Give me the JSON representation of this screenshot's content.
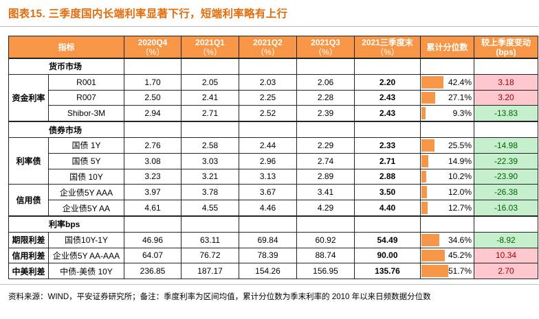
{
  "title": "图表15.  三季度国内长端利率显著下行，短端利率略有上行",
  "header": {
    "indicator": "指标",
    "cols": [
      {
        "label": "2020Q4",
        "unit": "（%）"
      },
      {
        "label": "2021Q1",
        "unit": "（%）"
      },
      {
        "label": "2021Q2",
        "unit": "（%）"
      },
      {
        "label": "2021Q3",
        "unit": "（%）"
      },
      {
        "label": "2021三季度末",
        "unit": "（%）"
      }
    ],
    "percentile": "累计分位数",
    "change": "较上季度变动",
    "change_unit": "(bps)"
  },
  "rows": [
    {
      "type": "section",
      "label": "货币市场"
    },
    {
      "type": "data",
      "group": "资金利率",
      "span": 3,
      "label": "R001",
      "values": [
        "1.70",
        "2.05",
        "2.03",
        "2.06"
      ],
      "end": "2.20",
      "pct": "42.4%",
      "pct_value": 42.4,
      "change": "3.18",
      "dir": "up"
    },
    {
      "type": "data",
      "label": "R007",
      "values": [
        "2.50",
        "2.41",
        "2.25",
        "2.28"
      ],
      "end": "2.43",
      "pct": "27.1%",
      "pct_value": 27.1,
      "change": "3.20",
      "dir": "up"
    },
    {
      "type": "data",
      "label": "Shibor-3M",
      "values": [
        "2.94",
        "2.71",
        "2.52",
        "2.39"
      ],
      "end": "2.43",
      "pct": "9.3%",
      "pct_value": 9.3,
      "change": "-13.83",
      "dir": "down"
    },
    {
      "type": "section",
      "label": "债券市场"
    },
    {
      "type": "data",
      "group": "利率债",
      "span": 3,
      "label": "国债 1Y",
      "values": [
        "2.76",
        "2.58",
        "2.44",
        "2.29"
      ],
      "end": "2.33",
      "pct": "25.5%",
      "pct_value": 25.5,
      "change": "-14.98",
      "dir": "down"
    },
    {
      "type": "data",
      "label": "国债 5Y",
      "values": [
        "3.08",
        "3.03",
        "2.96",
        "2.74"
      ],
      "end": "2.71",
      "pct": "14.9%",
      "pct_value": 14.9,
      "change": "-22.39",
      "dir": "down"
    },
    {
      "type": "data",
      "label": "国债 10Y",
      "values": [
        "3.23",
        "3.21",
        "3.13",
        "2.89"
      ],
      "end": "2.88",
      "pct": "10.2%",
      "pct_value": 10.2,
      "change": "-23.90",
      "dir": "down"
    },
    {
      "type": "data",
      "group": "信用债",
      "span": 2,
      "label": "企业债5Y AAA",
      "values": [
        "3.97",
        "3.78",
        "3.67",
        "3.41"
      ],
      "end": "3.50",
      "pct": "12.0%",
      "pct_value": 12.0,
      "change": "-26.38",
      "dir": "down"
    },
    {
      "type": "data",
      "label": "企业债5Y AA",
      "values": [
        "4.61",
        "4.55",
        "4.46",
        "4.29"
      ],
      "end": "4.40",
      "pct": "12.7%",
      "pct_value": 12.7,
      "change": "-16.03",
      "dir": "down"
    },
    {
      "type": "section",
      "label": "利率bps"
    },
    {
      "type": "data",
      "group": "期限利差",
      "span": 1,
      "label": "国债10Y-1Y",
      "values": [
        "46.96",
        "63.11",
        "69.84",
        "60.92"
      ],
      "end": "54.49",
      "pct": "34.6%",
      "pct_value": 34.6,
      "change": "-8.92",
      "dir": "down"
    },
    {
      "type": "data",
      "group": "信用利差",
      "span": 1,
      "label": "企业债5Y AA-AAA",
      "values": [
        "64.07",
        "76.72",
        "78.39",
        "88.74"
      ],
      "end": "90.00",
      "pct": "45.2%",
      "pct_value": 45.2,
      "change": "10.34",
      "dir": "up"
    },
    {
      "type": "data",
      "group": "中美利差",
      "span": 1,
      "label": "中债-美债 10Y",
      "values": [
        "236.85",
        "187.17",
        "154.26",
        "156.95"
      ],
      "end": "135.76",
      "pct": "51.7%",
      "pct_value": 51.7,
      "change": "2.70",
      "dir": "up"
    }
  ],
  "footnote": "资料来源：WIND，平安证券研究所；备注：季度利率为区间均值，累计分位数为季末利率的 2010 年以来日频数据分位数"
}
